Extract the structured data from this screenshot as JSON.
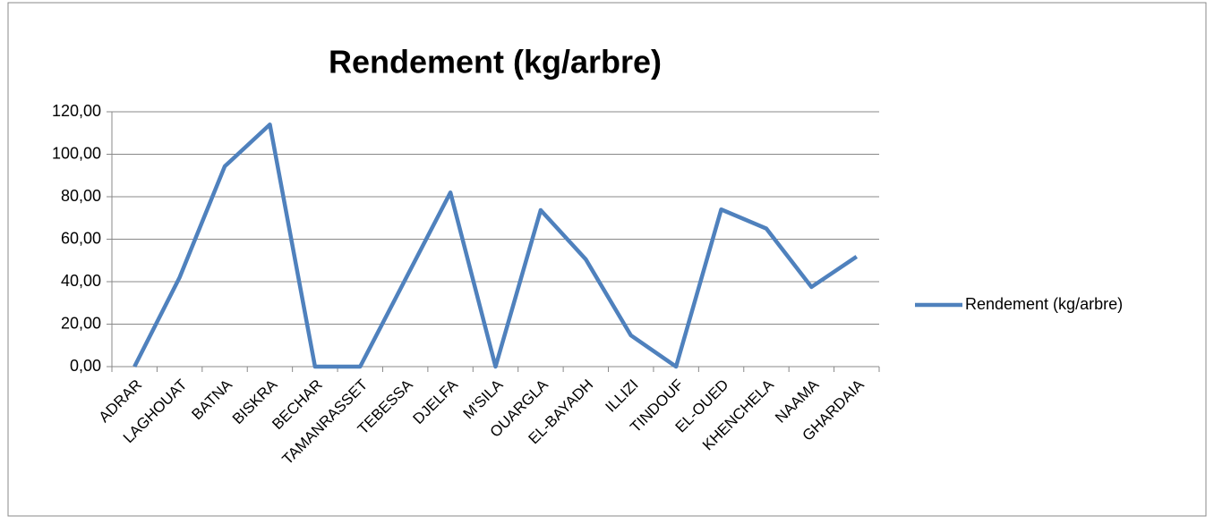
{
  "chart_data": {
    "type": "line",
    "title": "Rendement (kg/arbre)",
    "categories": [
      "ADRAR",
      "LAGHOUAT",
      "BATNA",
      "BISKRA",
      "BECHAR",
      "TAMANRASSET",
      "TEBESSA",
      "DJELFA",
      "M'SILA",
      "OUARGLA",
      "EL-BAYADH",
      "ILLIZI",
      "TINDOUF",
      "EL-OUED",
      "KHENCHELA",
      "NAAMA",
      "GHARDAIA"
    ],
    "series": [
      {
        "name": "Rendement (kg/arbre)",
        "color": "#4f81bd",
        "values": [
          0,
          42,
          94.3,
          114,
          0,
          0,
          41,
          82,
          0,
          73.7,
          50.5,
          14.7,
          0,
          74,
          65,
          37.5,
          51.8
        ]
      }
    ],
    "ylim": [
      0,
      120
    ],
    "yticks": [
      {
        "value": 0,
        "label": "0,00"
      },
      {
        "value": 20,
        "label": "20,00"
      },
      {
        "value": 40,
        "label": "40,00"
      },
      {
        "value": 60,
        "label": "60,00"
      },
      {
        "value": 80,
        "label": "80,00"
      },
      {
        "value": 100,
        "label": "100,00"
      },
      {
        "value": 120,
        "label": "120,00"
      }
    ],
    "grid": true,
    "legend": "right"
  }
}
